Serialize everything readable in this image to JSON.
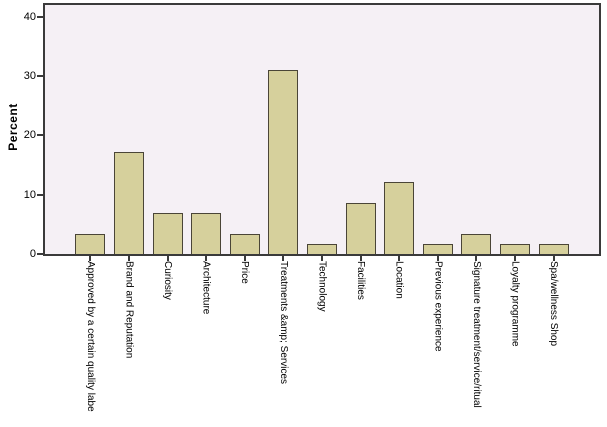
{
  "chart_data": {
    "type": "bar",
    "title": "",
    "xlabel": "",
    "ylabel": "Percent",
    "categories": [
      "Approved by a certain quality labe",
      "Brand and Reputation",
      "Curiosity",
      "Architecture",
      "Price",
      "Treatments &amp; Services",
      "Technology",
      "Facilities",
      "Location",
      "Previous experience",
      "Signature treatment/service/ritual",
      "Loyalty programme",
      "Spa/wellness Shop"
    ],
    "values": [
      3.4,
      17.2,
      6.9,
      6.9,
      3.4,
      31.0,
      1.7,
      8.6,
      12.1,
      1.7,
      3.4,
      1.7,
      1.7
    ],
    "y_ticks": [
      0,
      10,
      20,
      30,
      40
    ],
    "ylim": [
      0,
      42
    ],
    "grid": false,
    "legend_position": "none",
    "colors": {
      "bar_fill": "#d6d09c",
      "bar_border": "#4a4537",
      "plot_background": "#f5f0f5",
      "frame": "#3a3a3a",
      "text": "#000000"
    }
  }
}
